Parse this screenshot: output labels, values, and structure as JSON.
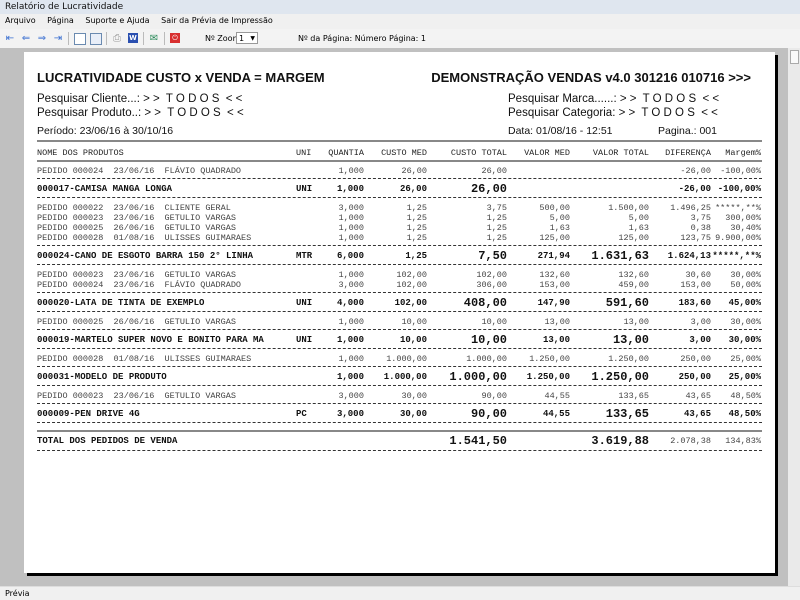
{
  "window": {
    "title": "Relatório de Lucratividade"
  },
  "menu": [
    "Arquivo",
    "Página",
    "Suporte e Ajuda",
    "Sair da Prévia de Impressão"
  ],
  "toolbar": {
    "zoom_label": "Nº Zoom",
    "zoom_value": "1",
    "page_label": "Nº da Página: Número Página: 1",
    "icons": [
      "first-page-icon",
      "prev-page-icon",
      "next-page-icon",
      "last-page-icon",
      "single-page-icon",
      "two-pages-icon",
      "print-icon",
      "word-export-icon",
      "email-icon",
      "close-preview-icon"
    ]
  },
  "report": {
    "title": "LUCRATIVIDADE CUSTO x VENDA = MARGEM",
    "subtitle": "DEMONSTRAÇÃO VENDAS v4.0 301216 010716 >>>",
    "filters": {
      "cliente": "Pesquisar Cliente...: > >  T O D O S  < <",
      "produto": "Pesquisar Produto..: > >  T O D O S  < <",
      "marca": "Pesquisar Marca......: > >  T O D O S  < <",
      "categoria": "Pesquisar Categoria: > >  T O D O S  < <"
    },
    "periodo": "Período: 23/06/16 à 30/10/16",
    "data": "Data: 01/08/16 - 12:51",
    "pagina": "Pagina.: 001",
    "columns": [
      "NOME DOS PRODUTOS",
      "UNI",
      "QUANTIA",
      "CUSTO MED",
      "CUSTO TOTAL",
      "VALOR MED",
      "VALOR TOTAL",
      "DIFERENÇA",
      "Margem%"
    ],
    "rows": [
      {
        "type": "order",
        "cells": [
          "PEDIDO 000024  23/06/16  FLÁVIO QUADRADO",
          "",
          "1,000",
          "26,00",
          "26,00",
          "",
          "",
          "-26,00",
          "-100,00%"
        ]
      },
      {
        "type": "product",
        "cells": [
          "000017-CAMISA MANGA LONGA",
          "UNI",
          "1,000",
          "26,00",
          "26,00",
          "",
          "",
          "-26,00",
          "-100,00%"
        ]
      },
      {
        "type": "order",
        "cells": [
          "PEDIDO 000022  23/06/16  CLIENTE GERAL",
          "",
          "3,000",
          "1,25",
          "3,75",
          "500,00",
          "1.500,00",
          "1.496,25",
          "*****,**%"
        ]
      },
      {
        "type": "order",
        "cells": [
          "PEDIDO 000023  23/06/16  GETULIO VARGAS",
          "",
          "1,000",
          "1,25",
          "1,25",
          "5,00",
          "5,00",
          "3,75",
          "300,00%"
        ]
      },
      {
        "type": "order",
        "cells": [
          "PEDIDO 000025  26/06/16  GETULIO VARGAS",
          "",
          "1,000",
          "1,25",
          "1,25",
          "1,63",
          "1,63",
          "0,38",
          "30,40%"
        ]
      },
      {
        "type": "order",
        "cells": [
          "PEDIDO 000028  01/08/16  ULISSES GUIMARAES",
          "",
          "1,000",
          "1,25",
          "1,25",
          "125,00",
          "125,00",
          "123,75",
          "9.900,00%"
        ]
      },
      {
        "type": "product",
        "cells": [
          "000024-CANO DE ESGOTO BARRA 150 2° LINHA",
          "MTR",
          "6,000",
          "1,25",
          "7,50",
          "271,94",
          "1.631,63",
          "1.624,13",
          "*****,**%"
        ]
      },
      {
        "type": "order",
        "cells": [
          "PEDIDO 000023  23/06/16  GETULIO VARGAS",
          "",
          "1,000",
          "102,00",
          "102,00",
          "132,60",
          "132,60",
          "30,60",
          "30,00%"
        ]
      },
      {
        "type": "order",
        "cells": [
          "PEDIDO 000024  23/06/16  FLÁVIO QUADRADO",
          "",
          "3,000",
          "102,00",
          "306,00",
          "153,00",
          "459,00",
          "153,00",
          "50,00%"
        ]
      },
      {
        "type": "product",
        "cells": [
          "000020-LATA DE TINTA DE EXEMPLO",
          "UNI",
          "4,000",
          "102,00",
          "408,00",
          "147,90",
          "591,60",
          "183,60",
          "45,00%"
        ]
      },
      {
        "type": "order",
        "cells": [
          "PEDIDO 000025  26/06/16  GETULIO VARGAS",
          "",
          "1,000",
          "10,00",
          "10,00",
          "13,00",
          "13,00",
          "3,00",
          "30,00%"
        ]
      },
      {
        "type": "product",
        "cells": [
          "000019-MARTELO SUPER NOVO E BONITO PARA MA",
          "UNI",
          "1,000",
          "10,00",
          "10,00",
          "13,00",
          "13,00",
          "3,00",
          "30,00%"
        ]
      },
      {
        "type": "order",
        "cells": [
          "PEDIDO 000028  01/08/16  ULISSES GUIMARAES",
          "",
          "1,000",
          "1.000,00",
          "1.000,00",
          "1.250,00",
          "1.250,00",
          "250,00",
          "25,00%"
        ]
      },
      {
        "type": "product",
        "cells": [
          "000031-MODELO DE PRODUTO",
          "",
          "1,000",
          "1.000,00",
          "1.000,00",
          "1.250,00",
          "1.250,00",
          "250,00",
          "25,00%"
        ]
      },
      {
        "type": "order",
        "cells": [
          "PEDIDO 000023  23/06/16  GETULIO VARGAS",
          "",
          "3,000",
          "30,00",
          "90,00",
          "44,55",
          "133,65",
          "43,65",
          "48,50%"
        ]
      },
      {
        "type": "product",
        "cells": [
          "000009-PEN DRIVE 4G",
          "PC",
          "3,000",
          "30,00",
          "90,00",
          "44,55",
          "133,65",
          "43,65",
          "48,50%"
        ]
      }
    ],
    "total": {
      "label": "TOTAL DOS PEDIDOS DE VENDA",
      "custo_total": "1.541,50",
      "valor_total": "3.619,88",
      "diferenca": "2.078,38",
      "margem": "134,83%"
    }
  },
  "status": "Prévia"
}
